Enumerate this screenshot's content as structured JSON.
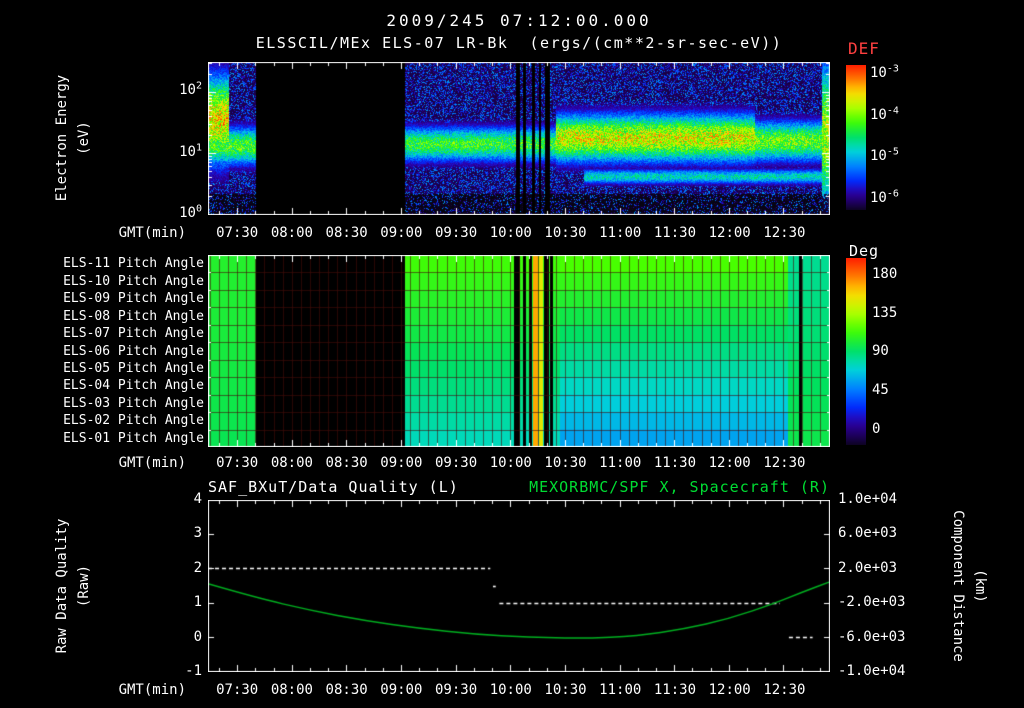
{
  "header": {
    "timestamp": "2009/245 07:12:00.000",
    "dataset": "ELSSCIL/MEx ELS-07 LR-Bk  (ergs/(cm**2-sr-sec-eV))"
  },
  "colors": {
    "background": "#000000",
    "text": "#ffffff",
    "accent_green": "#00dd33",
    "flux_title": "#ff4040",
    "quality_line": "#ffffff",
    "distance_line": "#00b020"
  },
  "time_axis": {
    "label": "GMT(min)",
    "start_minutes": 434,
    "end_minutes": 775,
    "ticks": [
      {
        "t": 450,
        "label": "07:30"
      },
      {
        "t": 480,
        "label": "08:00"
      },
      {
        "t": 510,
        "label": "08:30"
      },
      {
        "t": 540,
        "label": "09:00"
      },
      {
        "t": 570,
        "label": "09:30"
      },
      {
        "t": 600,
        "label": "10:00"
      },
      {
        "t": 630,
        "label": "10:30"
      },
      {
        "t": 660,
        "label": "11:00"
      },
      {
        "t": 690,
        "label": "11:30"
      },
      {
        "t": 720,
        "label": "12:00"
      },
      {
        "t": 750,
        "label": "12:30"
      }
    ]
  },
  "colorbar_flux": {
    "title": "DEF",
    "ticks": [
      {
        "base": "10",
        "exp": "-3"
      },
      {
        "base": "10",
        "exp": "-4"
      },
      {
        "base": "10",
        "exp": "-5"
      },
      {
        "base": "10",
        "exp": "-6"
      }
    ]
  },
  "colorbar_deg": {
    "title": "Deg",
    "ticks": [
      "180",
      "135",
      "90",
      "45",
      "0"
    ]
  },
  "spectrogram_panel": {
    "ylabel": "Electron Energy",
    "ylabel_units": "(eV)",
    "yticks": [
      {
        "base": "10",
        "exp": "2"
      },
      {
        "base": "10",
        "exp": "1"
      },
      {
        "base": "10",
        "exp": "0"
      }
    ]
  },
  "pitch_panel": {
    "row_labels": [
      "ELS-11 Pitch Angle",
      "ELS-10 Pitch Angle",
      "ELS-09 Pitch Angle",
      "ELS-08 Pitch Angle",
      "ELS-07 Pitch Angle",
      "ELS-06 Pitch Angle",
      "ELS-05 Pitch Angle",
      "ELS-04 Pitch Angle",
      "ELS-03 Pitch Angle",
      "ELS-02 Pitch Angle",
      "ELS-01 Pitch Angle"
    ]
  },
  "line_panel": {
    "title_left": "SAF_BXuT/Data Quality (L)",
    "title_right": "MEXORBMC/SPF X, Spacecraft (R)",
    "ylabel_left": "Raw Data Quality",
    "ylabel_left_units": "(Raw)",
    "ylabel_right": "Component Distance",
    "ylabel_right_units": "(km)",
    "left_ticks": [
      "4",
      "3",
      "2",
      "1",
      "0",
      "-1"
    ],
    "right_ticks": [
      "1.0e+04",
      "6.0e+03",
      "2.0e+03",
      "-2.0e+03",
      "-6.0e+03",
      "-1.0e+04"
    ]
  },
  "chart_data": [
    {
      "type": "heatmap",
      "name": "electron-energy-spectrogram",
      "title": "ELSSCIL/MEx ELS-07 LR-Bk",
      "units": "ergs/(cm**2-sr-sec-eV)",
      "x_range_gmt": [
        "07:14",
        "12:55"
      ],
      "ylabel": "Electron Energy (eV)",
      "y_scale": "log",
      "y_log10_top": 2.49,
      "y_log10_bottom": 0,
      "flux_log10_range": [
        -6,
        -3
      ],
      "data_gaps_min": [
        [
          460,
          542
        ]
      ],
      "dropout_stripes_min": [
        [
          604,
          2.5
        ],
        [
          607.5,
          1.5
        ],
        [
          612.5,
          1.5
        ],
        [
          616,
          1.5
        ],
        [
          620,
          2.5
        ]
      ],
      "features": [
        {
          "name": "startup-burst",
          "t": [
            434,
            445
          ],
          "log10_center": 1.55,
          "log10_sigma": 0.5,
          "amp": 0.82
        },
        {
          "name": "core-band-pre-gap",
          "t": [
            434,
            460
          ],
          "log10_center": 1.12,
          "log10_sigma": 0.22,
          "amp": 0.62
        },
        {
          "name": "core-band-morning",
          "t": [
            542,
            625
          ],
          "log10_center": 1.15,
          "log10_sigma": 0.2,
          "amp": 0.6
        },
        {
          "name": "core-band-bright",
          "t": [
            625,
            734
          ],
          "log10_center": 1.25,
          "log10_sigma": 0.27,
          "amp": 0.78
        },
        {
          "name": "core-band-late",
          "t": [
            734,
            775
          ],
          "log10_center": 1.2,
          "log10_sigma": 0.23,
          "amp": 0.66
        },
        {
          "name": "low-energy-band",
          "t": [
            640,
            775
          ],
          "log10_center": 0.62,
          "log10_sigma": 0.09,
          "amp": 0.45
        },
        {
          "name": "right-edge-column",
          "t": [
            771,
            775
          ],
          "log10_center": 1.3,
          "log10_sigma": 0.85,
          "amp": 0.72
        }
      ],
      "noise_seed": 7
    },
    {
      "type": "heatmap",
      "name": "pitch-angle-panels",
      "rows": 11,
      "units": "Deg",
      "value_range": [
        0,
        180
      ],
      "data_gaps_min": [
        [
          460,
          542
        ]
      ],
      "segments": [
        {
          "t": [
            434,
            460
          ],
          "deg_top_row": 103,
          "deg_bottom_row": 96
        },
        {
          "t": [
            542,
            627
          ],
          "deg_top_row": 110,
          "deg_bottom_row": 80
        },
        {
          "t": [
            627,
            752
          ],
          "deg_top_row": 112,
          "deg_bottom_row": 64
        },
        {
          "t": [
            752,
            775
          ],
          "deg_top_row": 86,
          "deg_bottom_row": 97
        }
      ],
      "black_stripes_min": [
        [
          603.5,
          3
        ],
        [
          607.5,
          2
        ],
        [
          611,
          1.5
        ],
        [
          619.5,
          3
        ],
        [
          622.5,
          1.5
        ],
        [
          759,
          1.5
        ]
      ],
      "colored_stripes_min": [
        [
          613.5,
          2.5,
          155
        ],
        [
          616.5,
          2,
          140
        ]
      ],
      "grid_interval_min": 5
    },
    {
      "type": "line",
      "name": "quality-and-distance",
      "left_axis": {
        "label": "Raw Data Quality (Raw)",
        "min": -1,
        "max": 4
      },
      "right_axis": {
        "label": "Component Distance (km)",
        "min": -10000,
        "max": 10000
      },
      "series": [
        {
          "name": "SAF_BXuT/Data Quality",
          "axis": "left",
          "style": "dashed",
          "color": "#ffffff",
          "segments": [
            {
              "t": [
                434,
                589
              ],
              "value": 2
            },
            {
              "t": [
                590.5,
                592
              ],
              "value": 1.5
            },
            {
              "t": [
                594,
                748
              ],
              "value": 1
            },
            {
              "t": [
                753,
                766
              ],
              "value": 0
            }
          ]
        },
        {
          "name": "MEXORBMC/SPF X Spacecraft",
          "axis": "right",
          "style": "solid",
          "color": "#00b020",
          "points_t_min": [
            434,
            460,
            490,
            520,
            550,
            580,
            610,
            640,
            670,
            695,
            720,
            745,
            760,
            775
          ],
          "points_km": [
            200,
            -1400,
            -2900,
            -4100,
            -5000,
            -5700,
            -6050,
            -6200,
            -5900,
            -5100,
            -3900,
            -2100,
            -800,
            400
          ]
        }
      ]
    }
  ]
}
